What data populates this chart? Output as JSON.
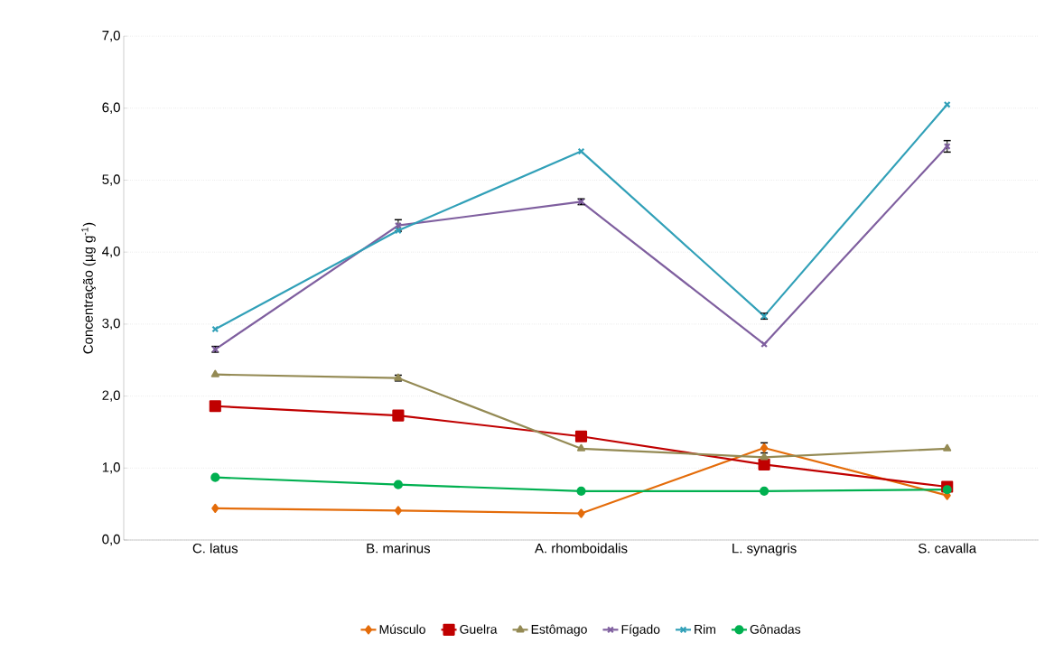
{
  "chart_data": {
    "type": "line",
    "ylabel": "Concentração (µg g$^{-1}$)",
    "categories": [
      "C. latus",
      "B. marinus",
      "A. rhomboidalis",
      "L. synagris",
      "S. cavalla"
    ],
    "ylim": [
      0,
      7
    ],
    "yticks": [
      {
        "value": 0,
        "label": "0,0"
      },
      {
        "value": 1,
        "label": "1,0"
      },
      {
        "value": 2,
        "label": "2,0"
      },
      {
        "value": 3,
        "label": "3,0"
      },
      {
        "value": 4,
        "label": "4,0"
      },
      {
        "value": 5,
        "label": "5,0"
      },
      {
        "value": 6,
        "label": "6,0"
      },
      {
        "value": 7,
        "label": "7,0"
      }
    ],
    "grid": "y",
    "legend": "bottom",
    "line_style": "solid",
    "series": [
      {
        "name": "Músculo",
        "color": "#e46c0a",
        "marker": "diamond",
        "values": [
          0.44,
          0.41,
          0.37,
          1.28,
          0.62
        ],
        "errors": [
          null,
          null,
          null,
          0.07,
          null
        ]
      },
      {
        "name": "Guelra",
        "color": "#c00000",
        "marker": "square",
        "values": [
          1.86,
          1.73,
          1.44,
          1.05,
          0.74
        ]
      },
      {
        "name": "Estômago",
        "color": "#948a54",
        "marker": "triangle",
        "values": [
          2.3,
          2.25,
          1.27,
          1.15,
          1.27
        ],
        "errors": [
          null,
          0.04,
          null,
          null,
          null
        ]
      },
      {
        "name": "Fígado",
        "color": "#7f5f9f",
        "marker": "cross",
        "values": [
          2.65,
          4.37,
          4.7,
          2.72,
          5.47
        ],
        "errors": [
          0.04,
          0.08,
          0.04,
          null,
          0.08
        ]
      },
      {
        "name": "Rim",
        "color": "#31a0b8",
        "marker": "cross",
        "values": [
          2.93,
          4.3,
          5.4,
          3.11,
          6.05
        ],
        "errors": [
          null,
          null,
          null,
          0.04,
          null
        ]
      },
      {
        "name": "Gônadas",
        "color": "#00b050",
        "marker": "circle",
        "values": [
          0.87,
          0.77,
          0.68,
          0.68,
          0.7
        ]
      }
    ]
  }
}
